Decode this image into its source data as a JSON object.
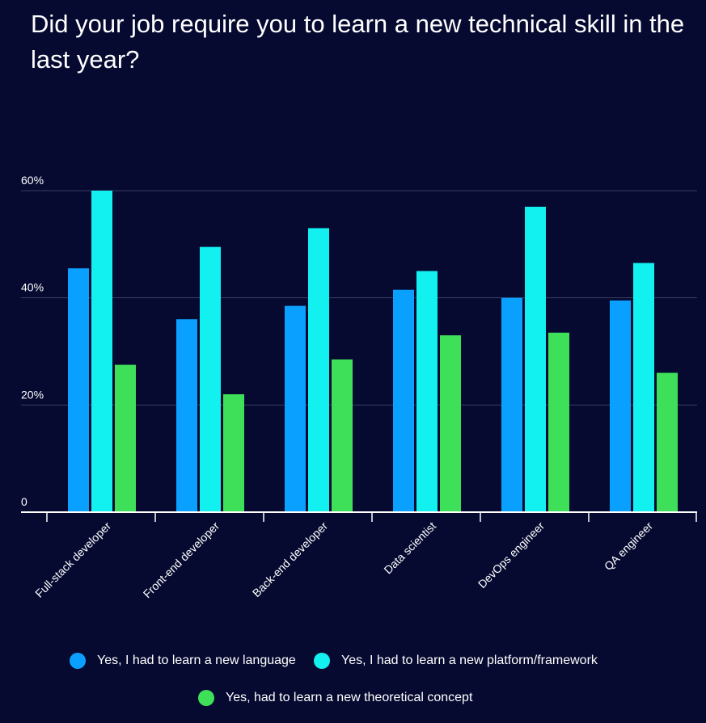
{
  "chart_data": {
    "type": "bar",
    "title": "Did your job require you to learn a new technical skill in the last year?",
    "categories": [
      "Full-stack developer",
      "Front-end developer",
      "Back-end developer",
      "Data scientist",
      "DevOps engineer",
      "QA engineer"
    ],
    "series": [
      {
        "name": "Yes, I had to learn a new language",
        "color": "#0aa0ff",
        "values": [
          45.5,
          36,
          38.5,
          41.5,
          40,
          39.5
        ]
      },
      {
        "name": "Yes, I had to learn a new platform/framework",
        "color": "#12f0f0",
        "values": [
          60,
          49.5,
          53,
          45,
          57,
          46.5
        ]
      },
      {
        "name": "Yes, had to learn a new theoretical concept",
        "color": "#3ee05a",
        "values": [
          27.5,
          22,
          28.5,
          33,
          33.5,
          26
        ]
      }
    ],
    "yticks": [
      "0",
      "20%",
      "40%",
      "60%"
    ],
    "ylim": [
      0,
      60
    ],
    "grid": true,
    "legend_position": "bottom"
  }
}
